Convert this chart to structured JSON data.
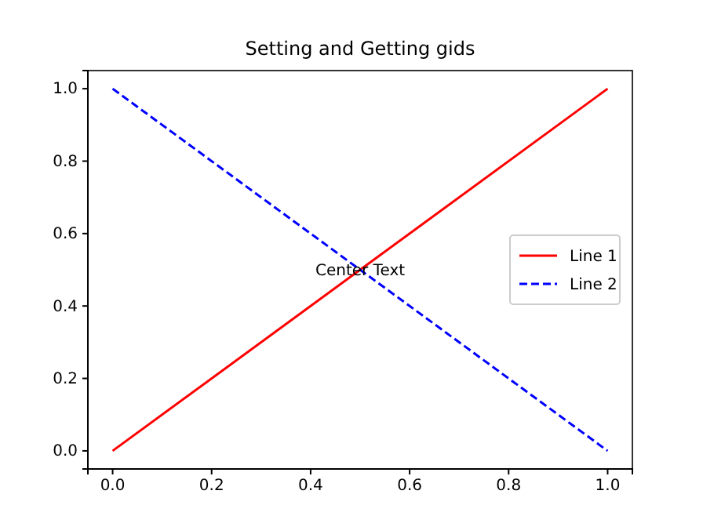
{
  "chart_data": {
    "type": "line",
    "title": "Setting and Getting gids",
    "x": [
      0,
      1
    ],
    "series": [
      {
        "name": "Line 1",
        "color": "#ff0000",
        "values": [
          0,
          1
        ],
        "line_style": "solid"
      },
      {
        "name": "Line 2",
        "color": "#0000ff",
        "values": [
          1,
          0
        ],
        "line_style": "dashed"
      }
    ],
    "xlim": [
      -0.05,
      1.05
    ],
    "ylim": [
      -0.05,
      1.05
    ],
    "xticks": [
      {
        "value": 0,
        "label": "0.0"
      },
      {
        "value": 0.2,
        "label": "0.2"
      },
      {
        "value": 0.4,
        "label": "0.4"
      },
      {
        "value": 0.6,
        "label": "0.6"
      },
      {
        "value": 0.8,
        "label": "0.8"
      },
      {
        "value": 1,
        "label": "1.0"
      }
    ],
    "yticks": [
      {
        "value": 0,
        "label": "0.0"
      },
      {
        "value": 0.2,
        "label": "0.2"
      },
      {
        "value": 0.4,
        "label": "0.4"
      },
      {
        "value": 0.6,
        "label": "0.6"
      },
      {
        "value": 0.8,
        "label": "0.8"
      },
      {
        "value": 1,
        "label": "1.0"
      }
    ],
    "annotations": [
      {
        "text": "Center Text",
        "x": 0.5,
        "y": 0.5
      }
    ],
    "legend": "right",
    "grid": false
  }
}
